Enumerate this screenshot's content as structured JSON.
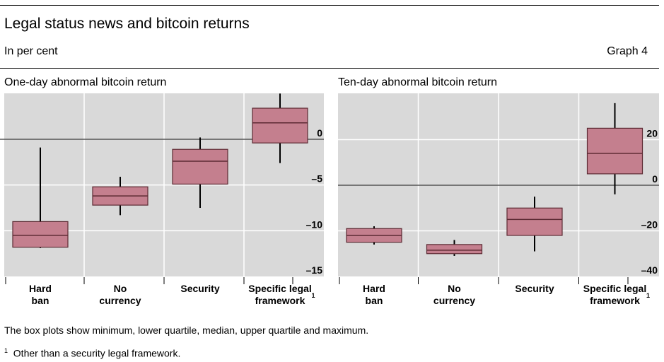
{
  "header": {
    "title": "Legal status news and bitcoin returns",
    "subtitle": "In per cent",
    "graph_label": "Graph 4"
  },
  "colors": {
    "box_fill": "#c47f8e",
    "box_stroke": "#5c2a33",
    "plot_bg": "#d9d9d9",
    "whisker": "#000000"
  },
  "chart_data": [
    {
      "type": "box",
      "title": "One-day abnormal bitcoin return",
      "ylim": [
        -15,
        5
      ],
      "yticks": [
        0,
        -5,
        -10,
        -15
      ],
      "ytick_labels": [
        "0",
        "–5",
        "–10",
        "–15"
      ],
      "grid": true,
      "categories": [
        [
          "Hard",
          "ban"
        ],
        [
          "No",
          "currency"
        ],
        [
          "Security"
        ],
        [
          "Specific legal",
          "framework"
        ]
      ],
      "footnote_marker": "1",
      "boxes": [
        {
          "min": -11.9,
          "q1": -11.8,
          "median": -10.5,
          "q3": -9.0,
          "max": -0.9
        },
        {
          "min": -8.3,
          "q1": -7.2,
          "median": -6.2,
          "q3": -5.2,
          "max": -4.1
        },
        {
          "min": -7.5,
          "q1": -4.9,
          "median": -2.4,
          "q3": -1.1,
          "max": 0.2
        },
        {
          "min": -2.6,
          "q1": -0.4,
          "median": 1.8,
          "q3": 3.4,
          "max": 5.0
        }
      ]
    },
    {
      "type": "box",
      "title": "Ten-day abnormal bitcoin return",
      "ylim": [
        -40,
        40
      ],
      "yticks": [
        20,
        0,
        -20,
        -40
      ],
      "ytick_labels": [
        "20",
        "0",
        "–20",
        "–40"
      ],
      "grid": true,
      "categories": [
        [
          "Hard",
          "ban"
        ],
        [
          "No",
          "currency"
        ],
        [
          "Security"
        ],
        [
          "Specific legal",
          "framework"
        ]
      ],
      "footnote_marker": "1",
      "boxes": [
        {
          "min": -26,
          "q1": -25,
          "median": -22,
          "q3": -19,
          "max": -18
        },
        {
          "min": -31,
          "q1": -30,
          "median": -28.5,
          "q3": -26,
          "max": -24
        },
        {
          "min": -29,
          "q1": -22,
          "median": -15,
          "q3": -10,
          "max": -5
        },
        {
          "min": -4,
          "q1": 5,
          "median": 14,
          "q3": 25,
          "max": 36
        }
      ]
    }
  ],
  "notes": {
    "boxplot": "The box plots show minimum, lower quartile, median, upper quartile and maximum.",
    "footnote_marker": "1",
    "footnote": "Other than a security legal framework."
  }
}
